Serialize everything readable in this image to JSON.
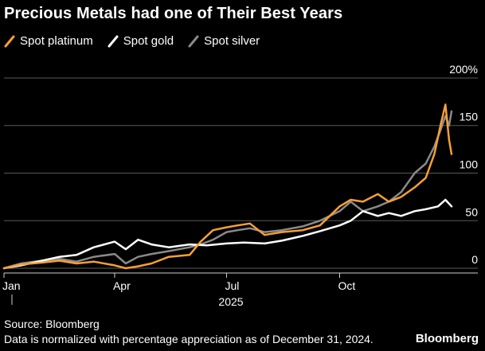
{
  "colors": {
    "platinum": "#f7a033",
    "gold": "#ffffff",
    "silver": "#8a8a8a",
    "grid": "#5a5a5a",
    "background": "#000000"
  },
  "header": {
    "title": "Precious Metals had one of Their Best Years"
  },
  "footer": {
    "source": "Source: Bloomberg",
    "note": "Data is normalized with percentage appreciation as of December 31, 2024.",
    "brand": "Bloomberg"
  },
  "chart_data": {
    "type": "line",
    "title": "Precious Metals had one of Their Best Years",
    "xlabel": "",
    "ylabel": "",
    "x_axis": {
      "type": "date",
      "range": [
        "2025-01-01",
        "2025-12-31"
      ],
      "ticks": [
        {
          "date": "2025-01-01",
          "label": "Jan"
        },
        {
          "date": "2025-04-01",
          "label": "Apr"
        },
        {
          "date": "2025-07-01",
          "label": "Jul"
        },
        {
          "date": "2025-10-01",
          "label": "Oct"
        }
      ],
      "year_label": "2025"
    },
    "y_axis": {
      "range": [
        -5,
        205
      ],
      "ticks": [
        0,
        50,
        100,
        150,
        200
      ],
      "tick_labels": [
        "0",
        "50",
        "100",
        "150",
        "200%"
      ],
      "position": "right",
      "grid": true
    },
    "legend": {
      "position": "top-left"
    },
    "series": [
      {
        "name": "Spot platinum",
        "color": "#f7a033",
        "points": [
          [
            "2025-01-01",
            0
          ],
          [
            "2025-01-15",
            4
          ],
          [
            "2025-02-01",
            6
          ],
          [
            "2025-02-15",
            8
          ],
          [
            "2025-03-01",
            5
          ],
          [
            "2025-03-15",
            7
          ],
          [
            "2025-04-01",
            3
          ],
          [
            "2025-04-10",
            0
          ],
          [
            "2025-04-20",
            2
          ],
          [
            "2025-05-01",
            5
          ],
          [
            "2025-05-15",
            12
          ],
          [
            "2025-06-01",
            14
          ],
          [
            "2025-06-10",
            28
          ],
          [
            "2025-06-20",
            40
          ],
          [
            "2025-07-01",
            43
          ],
          [
            "2025-07-10",
            45
          ],
          [
            "2025-07-20",
            47
          ],
          [
            "2025-08-01",
            35
          ],
          [
            "2025-08-15",
            38
          ],
          [
            "2025-09-01",
            40
          ],
          [
            "2025-09-15",
            45
          ],
          [
            "2025-10-01",
            65
          ],
          [
            "2025-10-10",
            72
          ],
          [
            "2025-10-20",
            70
          ],
          [
            "2025-11-01",
            78
          ],
          [
            "2025-11-10",
            70
          ],
          [
            "2025-11-20",
            75
          ],
          [
            "2025-12-01",
            85
          ],
          [
            "2025-12-10",
            95
          ],
          [
            "2025-12-17",
            120
          ],
          [
            "2025-12-22",
            150
          ],
          [
            "2025-12-26",
            172
          ],
          [
            "2025-12-29",
            135
          ],
          [
            "2025-12-31",
            120
          ]
        ]
      },
      {
        "name": "Spot gold",
        "color": "#ffffff",
        "points": [
          [
            "2025-01-01",
            0
          ],
          [
            "2025-01-15",
            3
          ],
          [
            "2025-02-01",
            8
          ],
          [
            "2025-02-15",
            12
          ],
          [
            "2025-03-01",
            14
          ],
          [
            "2025-03-15",
            22
          ],
          [
            "2025-04-01",
            28
          ],
          [
            "2025-04-10",
            20
          ],
          [
            "2025-04-20",
            30
          ],
          [
            "2025-05-01",
            25
          ],
          [
            "2025-05-15",
            22
          ],
          [
            "2025-06-01",
            25
          ],
          [
            "2025-06-15",
            24
          ],
          [
            "2025-07-01",
            26
          ],
          [
            "2025-07-15",
            27
          ],
          [
            "2025-08-01",
            26
          ],
          [
            "2025-08-15",
            29
          ],
          [
            "2025-09-01",
            34
          ],
          [
            "2025-09-15",
            39
          ],
          [
            "2025-10-01",
            45
          ],
          [
            "2025-10-10",
            50
          ],
          [
            "2025-10-20",
            60
          ],
          [
            "2025-11-01",
            55
          ],
          [
            "2025-11-10",
            58
          ],
          [
            "2025-11-20",
            55
          ],
          [
            "2025-12-01",
            60
          ],
          [
            "2025-12-10",
            62
          ],
          [
            "2025-12-20",
            65
          ],
          [
            "2025-12-26",
            72
          ],
          [
            "2025-12-31",
            65
          ]
        ]
      },
      {
        "name": "Spot silver",
        "color": "#8a8a8a",
        "points": [
          [
            "2025-01-01",
            0
          ],
          [
            "2025-01-15",
            5
          ],
          [
            "2025-02-01",
            8
          ],
          [
            "2025-02-15",
            10
          ],
          [
            "2025-03-01",
            7
          ],
          [
            "2025-03-15",
            12
          ],
          [
            "2025-04-01",
            15
          ],
          [
            "2025-04-10",
            5
          ],
          [
            "2025-04-20",
            12
          ],
          [
            "2025-05-01",
            15
          ],
          [
            "2025-05-15",
            18
          ],
          [
            "2025-06-01",
            22
          ],
          [
            "2025-06-10",
            25
          ],
          [
            "2025-06-20",
            30
          ],
          [
            "2025-07-01",
            38
          ],
          [
            "2025-07-10",
            40
          ],
          [
            "2025-07-20",
            42
          ],
          [
            "2025-08-01",
            38
          ],
          [
            "2025-08-15",
            40
          ],
          [
            "2025-09-01",
            44
          ],
          [
            "2025-09-15",
            50
          ],
          [
            "2025-10-01",
            60
          ],
          [
            "2025-10-10",
            70
          ],
          [
            "2025-10-20",
            60
          ],
          [
            "2025-11-01",
            65
          ],
          [
            "2025-11-10",
            70
          ],
          [
            "2025-11-20",
            80
          ],
          [
            "2025-12-01",
            100
          ],
          [
            "2025-12-10",
            110
          ],
          [
            "2025-12-17",
            128
          ],
          [
            "2025-12-22",
            145
          ],
          [
            "2025-12-26",
            160
          ],
          [
            "2025-12-29",
            150
          ],
          [
            "2025-12-31",
            165
          ]
        ]
      }
    ]
  }
}
